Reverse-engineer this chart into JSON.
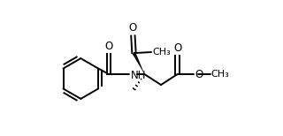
{
  "background": "#ffffff",
  "line_color": "#000000",
  "line_width": 1.4,
  "font_size": 8.5,
  "text_color": "#000000",
  "layout": {
    "xlim": [
      0,
      10
    ],
    "ylim": [
      2.5,
      9.5
    ],
    "figw": 3.2,
    "figh": 1.54,
    "dpi": 100
  }
}
